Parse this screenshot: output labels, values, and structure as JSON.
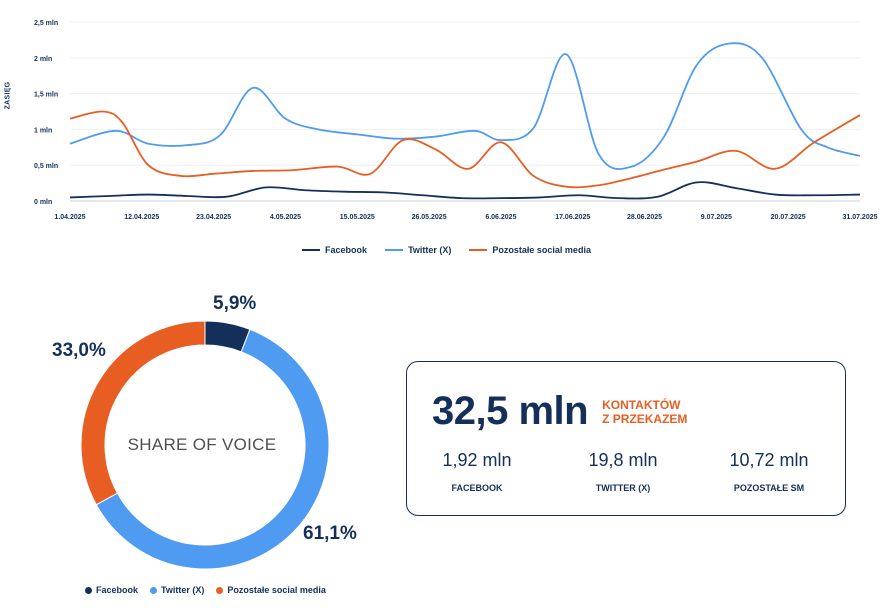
{
  "chart_data": [
    {
      "type": "line",
      "ylabel": "ZASIĘG",
      "xlabel": "",
      "ylim": [
        0,
        2.5
      ],
      "y_ticks": [
        0,
        0.5,
        1,
        1.5,
        2,
        2.5
      ],
      "y_tick_labels": [
        "0 mln",
        "0,5 mln",
        "1 mln",
        "1,5 mln",
        "2 mln",
        "2,5 mln"
      ],
      "x_range": [
        0,
        121
      ],
      "x_tick_positions": [
        0,
        11,
        22,
        33,
        44,
        55,
        66,
        77,
        88,
        99,
        110,
        121
      ],
      "x_tick_labels": [
        "1.04.2025",
        "12.04.2025",
        "23.04.2025",
        "4.05.2025",
        "15.05.2025",
        "26.05.2025",
        "6.06.2025",
        "17.06.2025",
        "28.06.2025",
        "9.07.2025",
        "20.07.2025",
        "31.07.2025"
      ],
      "grid": "horizontal",
      "legend_position": "bottom",
      "series": [
        {
          "name": "Facebook",
          "color": "#14305a",
          "x": [
            0,
            6,
            12,
            18,
            24,
            30,
            36,
            42,
            48,
            54,
            60,
            66,
            72,
            78,
            84,
            90,
            96,
            102,
            108,
            114,
            121
          ],
          "values": [
            0.05,
            0.07,
            0.09,
            0.07,
            0.06,
            0.19,
            0.15,
            0.13,
            0.12,
            0.08,
            0.04,
            0.04,
            0.05,
            0.08,
            0.04,
            0.06,
            0.26,
            0.18,
            0.09,
            0.08,
            0.09
          ]
        },
        {
          "name": "Twitter (X)",
          "color": "#4f9bf2",
          "x": [
            0,
            7,
            12,
            18,
            23,
            28,
            33,
            38,
            44,
            50,
            56,
            62,
            66,
            71,
            76,
            81,
            86,
            91,
            96,
            101,
            106,
            112,
            116,
            121
          ],
          "values": [
            0.8,
            0.98,
            0.8,
            0.78,
            0.92,
            1.58,
            1.15,
            1.0,
            0.93,
            0.87,
            0.9,
            0.98,
            0.85,
            1.02,
            2.05,
            0.65,
            0.48,
            0.9,
            1.9,
            2.2,
            2.0,
            1.0,
            0.75,
            0.63
          ]
        },
        {
          "name": "Pozostałe social media",
          "color": "#e85d22",
          "x": [
            0,
            5,
            8,
            12,
            17,
            22,
            28,
            34,
            41,
            46,
            51,
            56,
            61,
            66,
            71,
            76,
            81,
            86,
            91,
            96,
            102,
            108,
            114,
            121
          ],
          "values": [
            1.15,
            1.25,
            1.1,
            0.5,
            0.35,
            0.38,
            0.42,
            0.43,
            0.48,
            0.38,
            0.85,
            0.72,
            0.45,
            0.82,
            0.35,
            0.2,
            0.22,
            0.32,
            0.44,
            0.55,
            0.7,
            0.45,
            0.82,
            1.2
          ]
        }
      ]
    },
    {
      "type": "pie",
      "title": "SHARE OF VOICE",
      "categories": [
        "Facebook",
        "Twitter (X)",
        "Pozostałe social media"
      ],
      "values": [
        5.9,
        61.1,
        33.0
      ],
      "labels": [
        "5,9%",
        "61,1%",
        "33,0%"
      ],
      "colors": [
        "#14305a",
        "#4f9bf2",
        "#e85d22"
      ]
    }
  ],
  "summary": {
    "total_value": "32,5 mln",
    "total_label_line1": "KONTAKTÓW",
    "total_label_line2": "Z PRZEKAZEM",
    "stats": [
      {
        "value": "1,92 mln",
        "label": "FACEBOOK"
      },
      {
        "value": "19,8 mln",
        "label": "TWITTER (X)"
      },
      {
        "value": "10,72 mln",
        "label": "POZOSTAŁE SM"
      }
    ]
  }
}
